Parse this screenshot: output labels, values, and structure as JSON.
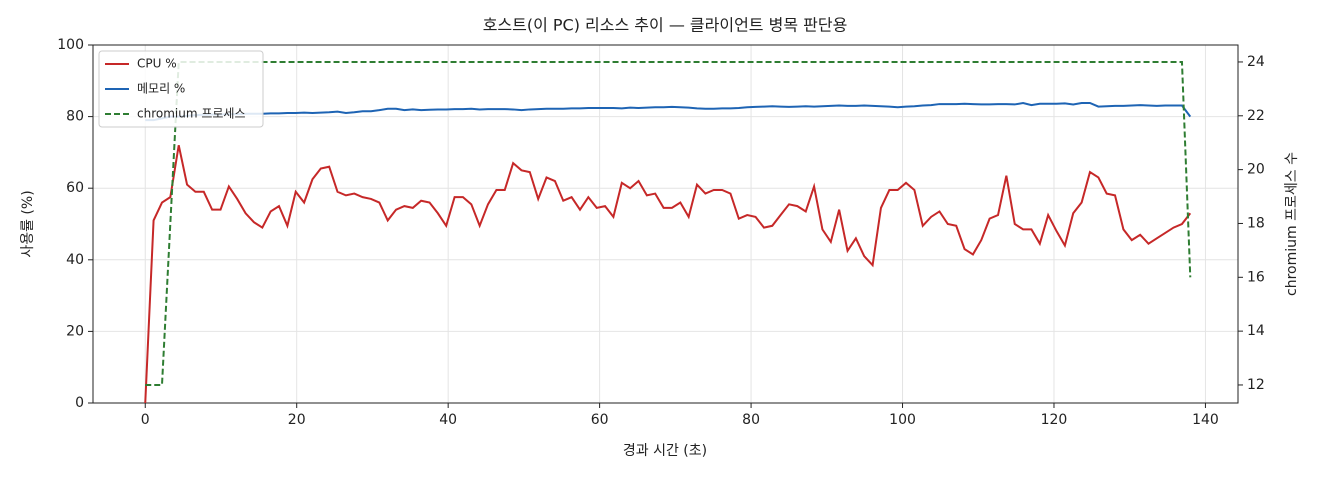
{
  "chart_data": {
    "type": "line",
    "title": "호스트(이 PC) 리소스 추이 — 클라이언트 병목 판단용",
    "xlabel": "경과 시간 (초)",
    "ylabel": "사용률 (%)",
    "y2label": "chromium 프로세스 수",
    "x": [
      0,
      1.1,
      2.21,
      3.31,
      4.42,
      5.52,
      6.62,
      7.73,
      8.83,
      9.94,
      11.04,
      12.14,
      13.25,
      14.35,
      15.46,
      16.56,
      17.66,
      18.77,
      19.87,
      20.98,
      22.08,
      23.18,
      24.29,
      25.39,
      26.5,
      27.6,
      28.7,
      29.81,
      30.91,
      32.02,
      33.12,
      34.22,
      35.33,
      36.43,
      37.54,
      38.64,
      39.74,
      40.85,
      41.95,
      43.06,
      44.16,
      45.26,
      46.37,
      47.47,
      48.58,
      49.68,
      50.78,
      51.89,
      52.99,
      54.1,
      55.2,
      56.3,
      57.41,
      58.51,
      59.62,
      60.72,
      61.82,
      62.93,
      64.03,
      65.14,
      66.24,
      67.34,
      68.45,
      69.55,
      70.66,
      71.76,
      72.86,
      73.97,
      75.07,
      76.18,
      77.28,
      78.38,
      79.49,
      80.59,
      81.7,
      82.8,
      83.9,
      85.01,
      86.11,
      87.22,
      88.32,
      89.42,
      90.53,
      91.63,
      92.74,
      93.84,
      94.94,
      96.05,
      97.15,
      98.26,
      99.36,
      100.46,
      101.57,
      102.67,
      103.78,
      104.88,
      105.98,
      107.09,
      108.19,
      109.3,
      110.4,
      111.5,
      112.61,
      113.71,
      114.82,
      115.92,
      117.02,
      118.13,
      119.23,
      120.34,
      121.44,
      122.54,
      123.65,
      124.75,
      125.86,
      126.96,
      128.06,
      129.17,
      130.27,
      131.38,
      132.48,
      133.58,
      134.69,
      135.79,
      136.9,
      138
    ],
    "series": [
      {
        "name": "CPU %",
        "color": "#c62828",
        "linestyle": "solid",
        "values": [
          0,
          51,
          56,
          57.5,
          72,
          61,
          59,
          59,
          54,
          54,
          60.5,
          57,
          53,
          50.5,
          49,
          53.5,
          55,
          49.5,
          59,
          56,
          62.5,
          65.5,
          66,
          59,
          58,
          58.5,
          57.5,
          57,
          56,
          51,
          54,
          55,
          54.5,
          56.5,
          56,
          53,
          49.5,
          57.5,
          57.5,
          55.5,
          49.5,
          55.5,
          59.5,
          59.5,
          67,
          65,
          64.5,
          57,
          63,
          62,
          56.5,
          57.5,
          54,
          57.5,
          54.5,
          55,
          52,
          61.5,
          60,
          62,
          58,
          58.5,
          54.5,
          54.5,
          56,
          52,
          61,
          58.5,
          59.5,
          59.5,
          58.5,
          51.5,
          52.5,
          52,
          49,
          49.5,
          52.5,
          55.5,
          55,
          53.5,
          60.5,
          48.5,
          45,
          54,
          42.5,
          46,
          41,
          38.5,
          54.5,
          59.5,
          59.5,
          61.5,
          59.5,
          49.5,
          52,
          53.5,
          50,
          49.5,
          43,
          41.5,
          45.5,
          51.5,
          52.5,
          63.5,
          50,
          48.5,
          48.5,
          44.5,
          52.5,
          48,
          44,
          53,
          56,
          64.5,
          63,
          58.5,
          58,
          48.5,
          45.5,
          47,
          44.5,
          46,
          47.5,
          49,
          50,
          53
        ]
      },
      {
        "name": "메모리 %",
        "color": "#1e64b4",
        "linestyle": "solid",
        "values": [
          79,
          79,
          79.5,
          80,
          80,
          80.2,
          80.4,
          80.5,
          80.6,
          80.6,
          80.7,
          80.7,
          80.8,
          80.8,
          80.8,
          80.9,
          80.9,
          81,
          81,
          81.1,
          81,
          81.1,
          81.2,
          81.4,
          81,
          81.2,
          81.5,
          81.5,
          81.8,
          82.2,
          82.2,
          81.8,
          82,
          81.8,
          81.9,
          82,
          82,
          82.1,
          82.1,
          82.2,
          82,
          82.1,
          82.1,
          82.1,
          82,
          81.8,
          82,
          82.1,
          82.2,
          82.2,
          82.2,
          82.3,
          82.3,
          82.4,
          82.4,
          82.4,
          82.4,
          82.3,
          82.5,
          82.4,
          82.5,
          82.6,
          82.6,
          82.7,
          82.6,
          82.5,
          82.3,
          82.2,
          82.2,
          82.3,
          82.3,
          82.4,
          82.6,
          82.7,
          82.8,
          82.9,
          82.8,
          82.7,
          82.8,
          82.9,
          82.8,
          82.9,
          83,
          83.1,
          83,
          83,
          83.1,
          83,
          82.9,
          82.8,
          82.6,
          82.8,
          82.9,
          83.1,
          83.2,
          83.5,
          83.5,
          83.5,
          83.6,
          83.5,
          83.4,
          83.4,
          83.5,
          83.5,
          83.4,
          83.8,
          83.2,
          83.6,
          83.6,
          83.6,
          83.7,
          83.4,
          83.8,
          83.8,
          82.8,
          82.9,
          83,
          83,
          83.1,
          83.2,
          83.1,
          83,
          83.1,
          83.1,
          83.1,
          80
        ]
      },
      {
        "name": "chromium 프로세스",
        "color": "#2e7d32",
        "linestyle": "dashed",
        "axis": "y2",
        "values": [
          12,
          12,
          12,
          18,
          24,
          24,
          24,
          24,
          24,
          24,
          24,
          24,
          24,
          24,
          24,
          24,
          24,
          24,
          24,
          24,
          24,
          24,
          24,
          24,
          24,
          24,
          24,
          24,
          24,
          24,
          24,
          24,
          24,
          24,
          24,
          24,
          24,
          24,
          24,
          24,
          24,
          24,
          24,
          24,
          24,
          24,
          24,
          24,
          24,
          24,
          24,
          24,
          24,
          24,
          24,
          24,
          24,
          24,
          24,
          24,
          24,
          24,
          24,
          24,
          24,
          24,
          24,
          24,
          24,
          24,
          24,
          24,
          24,
          24,
          24,
          24,
          24,
          24,
          24,
          24,
          24,
          24,
          24,
          24,
          24,
          24,
          24,
          24,
          24,
          24,
          24,
          24,
          24,
          24,
          24,
          24,
          24,
          24,
          24,
          24,
          24,
          24,
          24,
          24,
          24,
          24,
          24,
          24,
          24,
          24,
          24,
          24,
          24,
          24,
          24,
          24,
          24,
          24,
          24,
          24,
          24,
          24,
          24,
          24,
          24,
          16
        ]
      }
    ],
    "xlim": [
      -6.9,
      144.3
    ],
    "xticks": [
      0,
      20,
      40,
      60,
      80,
      100,
      120,
      140
    ],
    "ylim": [
      0,
      100
    ],
    "yticks": [
      0,
      20,
      40,
      60,
      80,
      100
    ],
    "y2lim": [
      11.33,
      24.63
    ],
    "y2ticks": [
      12,
      14,
      16,
      18,
      20,
      22,
      24
    ],
    "grid": true,
    "legend": "upper left"
  }
}
